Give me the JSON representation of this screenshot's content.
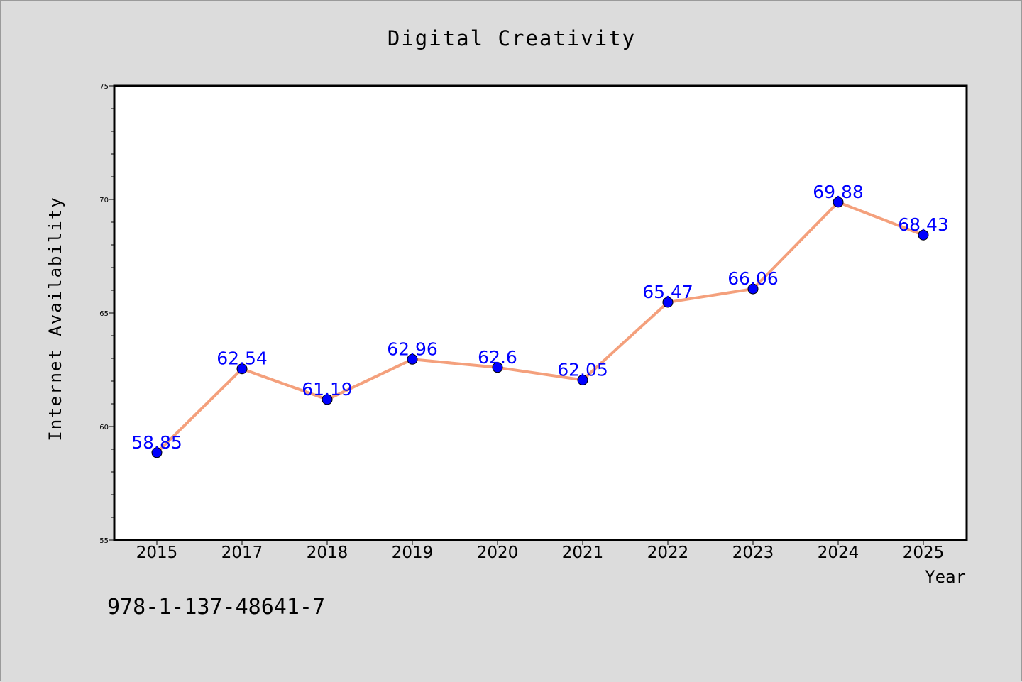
{
  "chart_data": {
    "type": "line",
    "title": "Digital Creativity",
    "xlabel": "Year",
    "ylabel": "Internet Availability",
    "categories": [
      "2015",
      "2017",
      "2018",
      "2019",
      "2020",
      "2021",
      "2022",
      "2023",
      "2024",
      "2025"
    ],
    "series": [
      {
        "values": [
          58.85,
          62.54,
          61.19,
          62.96,
          62.6,
          62.05,
          65.47,
          66.06,
          69.88,
          68.43
        ],
        "line_color": "#f4a07c",
        "marker_color": "#0000ff"
      }
    ],
    "data_labels": [
      "58.85",
      "62.54",
      "61.19",
      "62.96",
      "62.6",
      "62.05",
      "65.47",
      "66.06",
      "69.88",
      "68.43"
    ],
    "ylim": [
      55,
      75
    ],
    "yticks": [
      "55",
      "60",
      "65",
      "70",
      "75"
    ],
    "grid": false,
    "legend": "none"
  },
  "footnote": "978-1-137-48641-7",
  "colors": {
    "background": "#dcdcdc",
    "plot_background": "#ffffff",
    "data_label": "#0000ff"
  }
}
